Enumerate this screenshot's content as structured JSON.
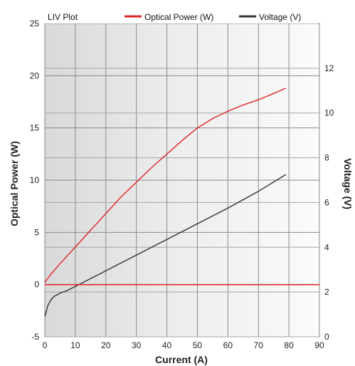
{
  "chart_data": {
    "type": "line",
    "legend_title": "LIV Plot",
    "legend_position": "top",
    "grid": true,
    "xlabel": "Current (A)",
    "ylabel_left": "Optical Power (W)",
    "ylabel_right": "Voltage (V)",
    "xlim": [
      0,
      90
    ],
    "ylim_left": [
      -5,
      25
    ],
    "ylim_right": [
      0,
      14
    ],
    "x_ticks": [
      0,
      10,
      20,
      30,
      40,
      50,
      60,
      70,
      80,
      90
    ],
    "y_ticks_left": [
      -5,
      0,
      5,
      10,
      15,
      20,
      25
    ],
    "y_ticks_right": [
      0,
      2,
      4,
      6,
      8,
      10,
      12
    ],
    "series": [
      {
        "name": "Optical Power (W)",
        "axis": "left",
        "color": "#e0242a",
        "x": [
          0,
          2,
          5,
          10,
          15,
          20,
          25,
          30,
          35,
          40,
          45,
          50,
          55,
          60,
          65,
          70,
          75,
          79
        ],
        "y": [
          0.2,
          1.0,
          2.0,
          3.6,
          5.2,
          6.8,
          8.4,
          9.8,
          11.2,
          12.5,
          13.8,
          15.0,
          15.9,
          16.6,
          17.2,
          17.7,
          18.3,
          18.8
        ]
      },
      {
        "name": "Voltage (V)",
        "axis": "right",
        "color": "#333333",
        "x": [
          0,
          1,
          2,
          3,
          5,
          7,
          10,
          15,
          20,
          30,
          40,
          50,
          60,
          70,
          79
        ],
        "y": [
          0.9,
          1.4,
          1.65,
          1.8,
          1.95,
          2.05,
          2.25,
          2.6,
          2.95,
          3.65,
          4.35,
          5.05,
          5.75,
          6.5,
          7.25
        ]
      },
      {
        "name": "",
        "axis": "left",
        "color": "#e0242a",
        "x": [
          0,
          90
        ],
        "y": [
          0,
          0
        ]
      }
    ]
  }
}
